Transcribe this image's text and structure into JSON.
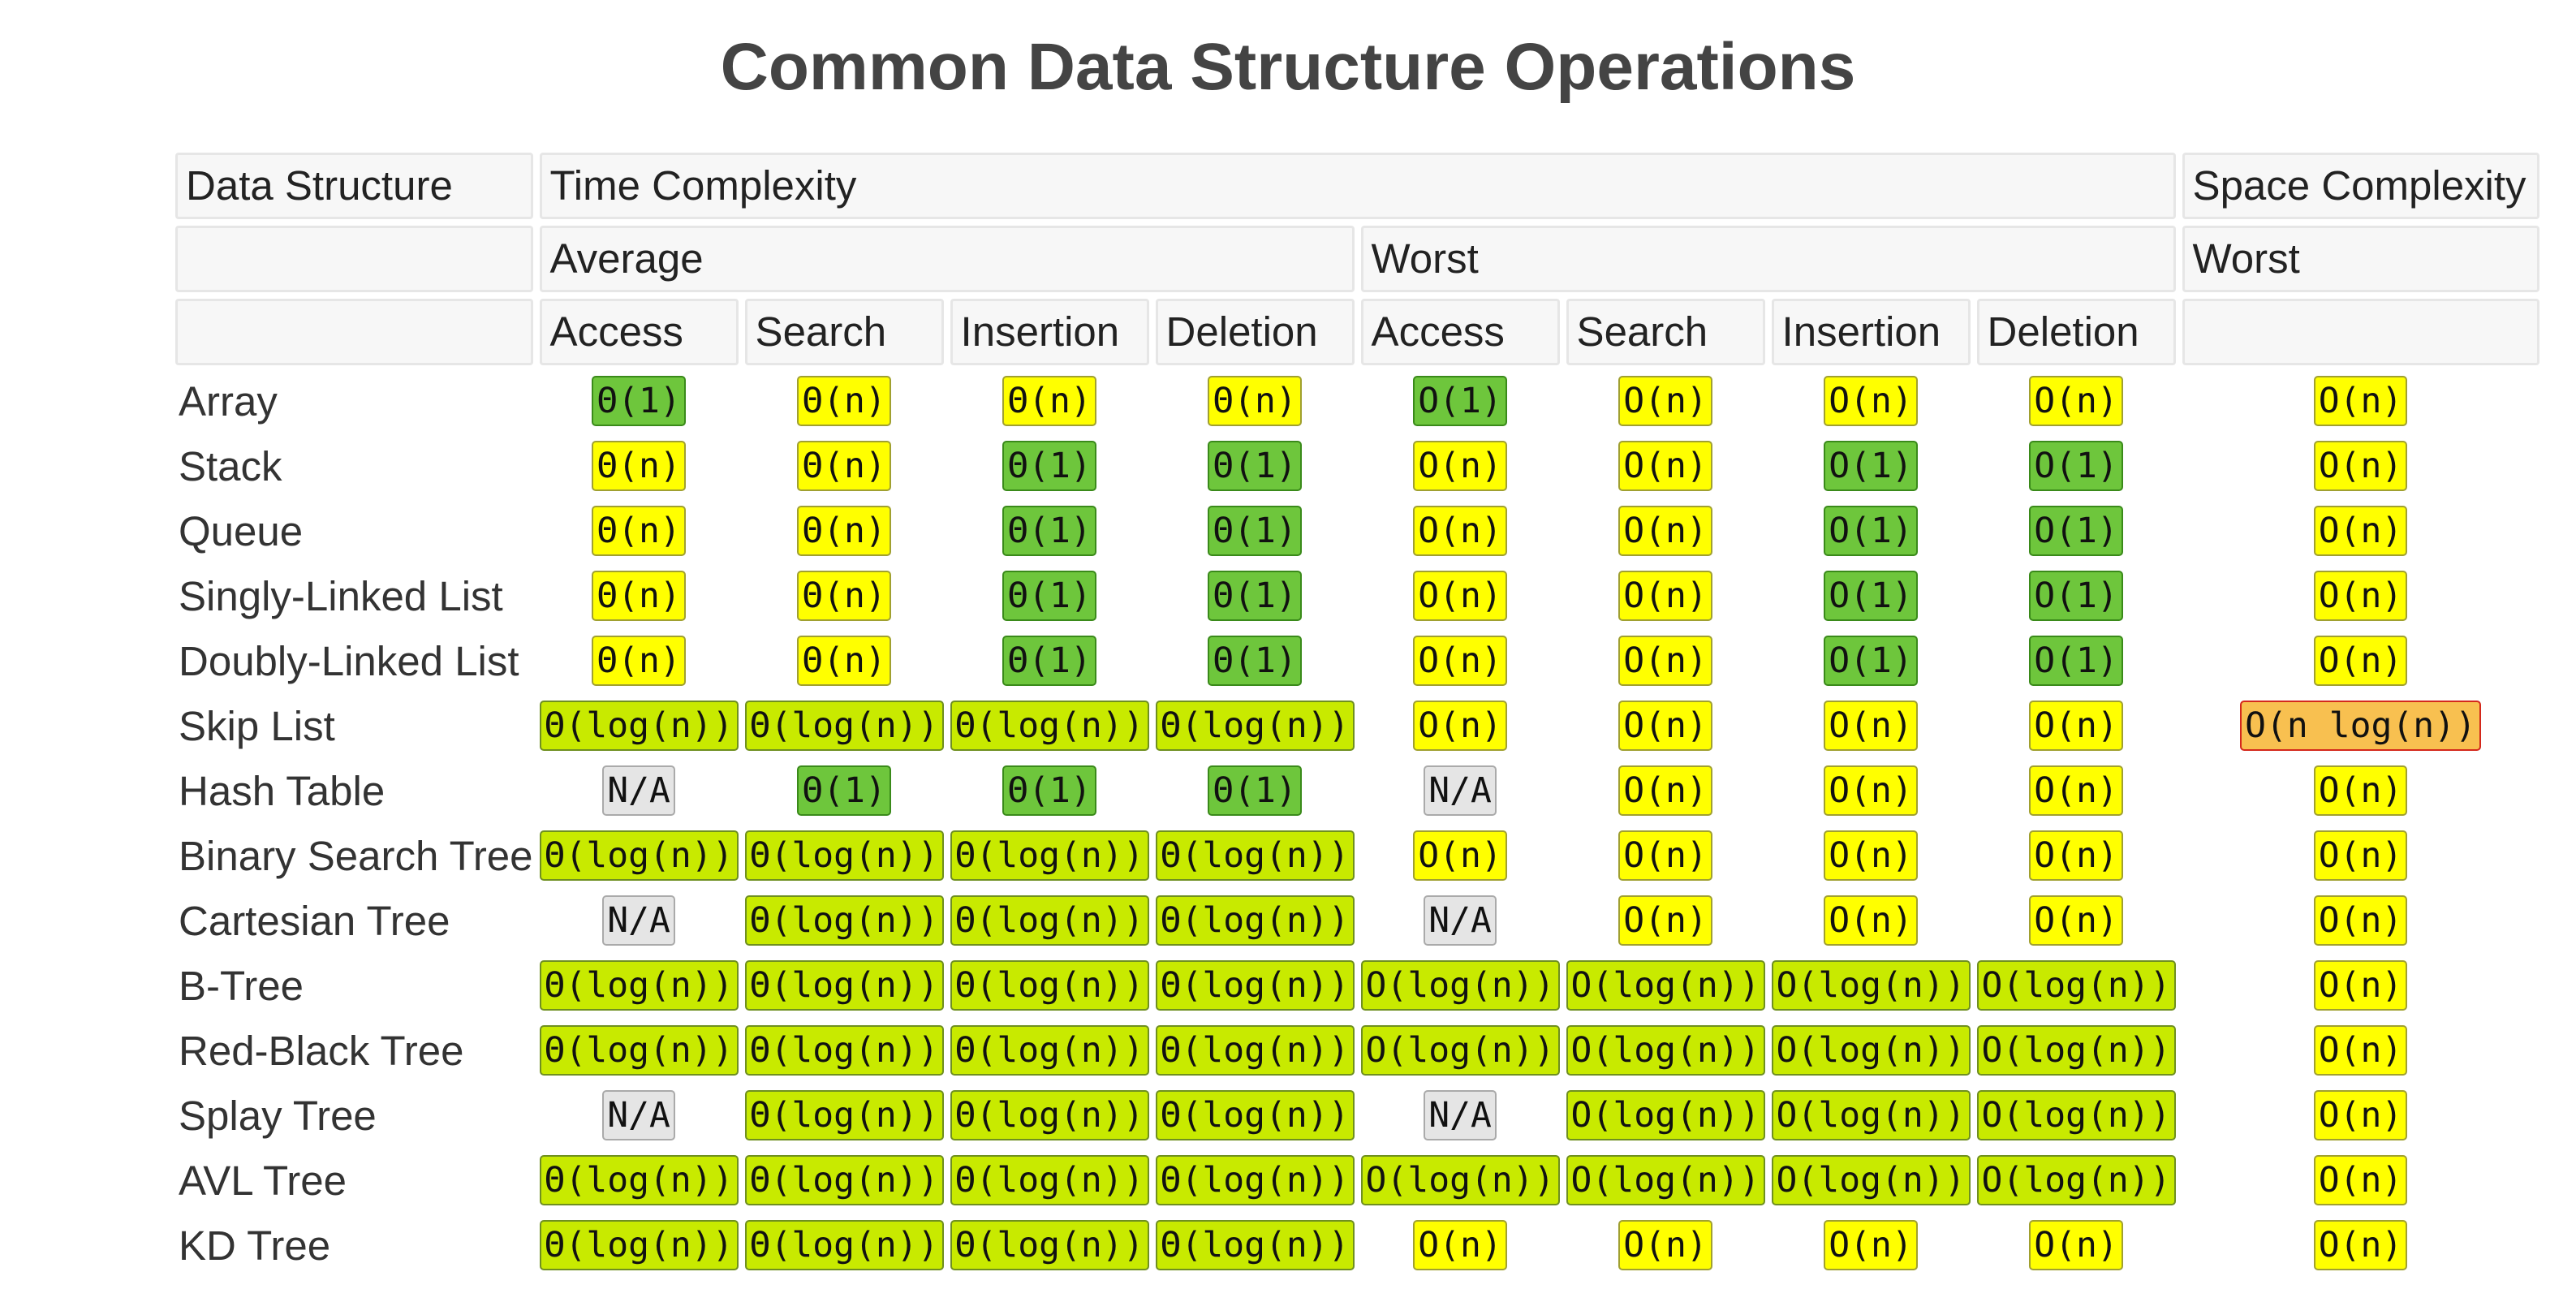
{
  "title": "Common Data Structure Operations",
  "colors": {
    "good": "#6ec63c",
    "fair": "#c8ea00",
    "ok": "#ffff00",
    "bad": "#f8c050",
    "na": "#e5e5e5"
  },
  "headers": {
    "data_structure": "Data Structure",
    "time_complexity": "Time Complexity",
    "space_complexity": "Space Complexity",
    "average": "Average",
    "worst": "Worst",
    "space_worst": "Worst",
    "columns": [
      "Access",
      "Search",
      "Insertion",
      "Deletion",
      "Access",
      "Search",
      "Insertion",
      "Deletion"
    ]
  },
  "rows": [
    {
      "name": "Array",
      "cells": [
        {
          "v": "Θ(1)",
          "c": "good"
        },
        {
          "v": "Θ(n)",
          "c": "ok"
        },
        {
          "v": "Θ(n)",
          "c": "ok"
        },
        {
          "v": "Θ(n)",
          "c": "ok"
        },
        {
          "v": "O(1)",
          "c": "good"
        },
        {
          "v": "O(n)",
          "c": "ok"
        },
        {
          "v": "O(n)",
          "c": "ok"
        },
        {
          "v": "O(n)",
          "c": "ok"
        },
        {
          "v": "O(n)",
          "c": "ok"
        }
      ]
    },
    {
      "name": "Stack",
      "cells": [
        {
          "v": "Θ(n)",
          "c": "ok"
        },
        {
          "v": "Θ(n)",
          "c": "ok"
        },
        {
          "v": "Θ(1)",
          "c": "good"
        },
        {
          "v": "Θ(1)",
          "c": "good"
        },
        {
          "v": "O(n)",
          "c": "ok"
        },
        {
          "v": "O(n)",
          "c": "ok"
        },
        {
          "v": "O(1)",
          "c": "good"
        },
        {
          "v": "O(1)",
          "c": "good"
        },
        {
          "v": "O(n)",
          "c": "ok"
        }
      ]
    },
    {
      "name": "Queue",
      "cells": [
        {
          "v": "Θ(n)",
          "c": "ok"
        },
        {
          "v": "Θ(n)",
          "c": "ok"
        },
        {
          "v": "Θ(1)",
          "c": "good"
        },
        {
          "v": "Θ(1)",
          "c": "good"
        },
        {
          "v": "O(n)",
          "c": "ok"
        },
        {
          "v": "O(n)",
          "c": "ok"
        },
        {
          "v": "O(1)",
          "c": "good"
        },
        {
          "v": "O(1)",
          "c": "good"
        },
        {
          "v": "O(n)",
          "c": "ok"
        }
      ]
    },
    {
      "name": "Singly-Linked List",
      "cells": [
        {
          "v": "Θ(n)",
          "c": "ok"
        },
        {
          "v": "Θ(n)",
          "c": "ok"
        },
        {
          "v": "Θ(1)",
          "c": "good"
        },
        {
          "v": "Θ(1)",
          "c": "good"
        },
        {
          "v": "O(n)",
          "c": "ok"
        },
        {
          "v": "O(n)",
          "c": "ok"
        },
        {
          "v": "O(1)",
          "c": "good"
        },
        {
          "v": "O(1)",
          "c": "good"
        },
        {
          "v": "O(n)",
          "c": "ok"
        }
      ]
    },
    {
      "name": "Doubly-Linked List",
      "cells": [
        {
          "v": "Θ(n)",
          "c": "ok"
        },
        {
          "v": "Θ(n)",
          "c": "ok"
        },
        {
          "v": "Θ(1)",
          "c": "good"
        },
        {
          "v": "Θ(1)",
          "c": "good"
        },
        {
          "v": "O(n)",
          "c": "ok"
        },
        {
          "v": "O(n)",
          "c": "ok"
        },
        {
          "v": "O(1)",
          "c": "good"
        },
        {
          "v": "O(1)",
          "c": "good"
        },
        {
          "v": "O(n)",
          "c": "ok"
        }
      ]
    },
    {
      "name": "Skip List",
      "cells": [
        {
          "v": "Θ(log(n))",
          "c": "fair"
        },
        {
          "v": "Θ(log(n))",
          "c": "fair"
        },
        {
          "v": "Θ(log(n))",
          "c": "fair"
        },
        {
          "v": "Θ(log(n))",
          "c": "fair"
        },
        {
          "v": "O(n)",
          "c": "ok"
        },
        {
          "v": "O(n)",
          "c": "ok"
        },
        {
          "v": "O(n)",
          "c": "ok"
        },
        {
          "v": "O(n)",
          "c": "ok"
        },
        {
          "v": "O(n log(n))",
          "c": "bad"
        }
      ]
    },
    {
      "name": "Hash Table",
      "cells": [
        {
          "v": "N/A",
          "c": "na"
        },
        {
          "v": "Θ(1)",
          "c": "good"
        },
        {
          "v": "Θ(1)",
          "c": "good"
        },
        {
          "v": "Θ(1)",
          "c": "good"
        },
        {
          "v": "N/A",
          "c": "na"
        },
        {
          "v": "O(n)",
          "c": "ok"
        },
        {
          "v": "O(n)",
          "c": "ok"
        },
        {
          "v": "O(n)",
          "c": "ok"
        },
        {
          "v": "O(n)",
          "c": "ok"
        }
      ]
    },
    {
      "name": "Binary Search Tree",
      "cells": [
        {
          "v": "Θ(log(n))",
          "c": "fair"
        },
        {
          "v": "Θ(log(n))",
          "c": "fair"
        },
        {
          "v": "Θ(log(n))",
          "c": "fair"
        },
        {
          "v": "Θ(log(n))",
          "c": "fair"
        },
        {
          "v": "O(n)",
          "c": "ok"
        },
        {
          "v": "O(n)",
          "c": "ok"
        },
        {
          "v": "O(n)",
          "c": "ok"
        },
        {
          "v": "O(n)",
          "c": "ok"
        },
        {
          "v": "O(n)",
          "c": "ok"
        }
      ]
    },
    {
      "name": "Cartesian Tree",
      "cells": [
        {
          "v": "N/A",
          "c": "na"
        },
        {
          "v": "Θ(log(n))",
          "c": "fair"
        },
        {
          "v": "Θ(log(n))",
          "c": "fair"
        },
        {
          "v": "Θ(log(n))",
          "c": "fair"
        },
        {
          "v": "N/A",
          "c": "na"
        },
        {
          "v": "O(n)",
          "c": "ok"
        },
        {
          "v": "O(n)",
          "c": "ok"
        },
        {
          "v": "O(n)",
          "c": "ok"
        },
        {
          "v": "O(n)",
          "c": "ok"
        }
      ]
    },
    {
      "name": "B-Tree",
      "cells": [
        {
          "v": "Θ(log(n))",
          "c": "fair"
        },
        {
          "v": "Θ(log(n))",
          "c": "fair"
        },
        {
          "v": "Θ(log(n))",
          "c": "fair"
        },
        {
          "v": "Θ(log(n))",
          "c": "fair"
        },
        {
          "v": "O(log(n))",
          "c": "fair"
        },
        {
          "v": "O(log(n))",
          "c": "fair"
        },
        {
          "v": "O(log(n))",
          "c": "fair"
        },
        {
          "v": "O(log(n))",
          "c": "fair"
        },
        {
          "v": "O(n)",
          "c": "ok"
        }
      ]
    },
    {
      "name": "Red-Black Tree",
      "cells": [
        {
          "v": "Θ(log(n))",
          "c": "fair"
        },
        {
          "v": "Θ(log(n))",
          "c": "fair"
        },
        {
          "v": "Θ(log(n))",
          "c": "fair"
        },
        {
          "v": "Θ(log(n))",
          "c": "fair"
        },
        {
          "v": "O(log(n))",
          "c": "fair"
        },
        {
          "v": "O(log(n))",
          "c": "fair"
        },
        {
          "v": "O(log(n))",
          "c": "fair"
        },
        {
          "v": "O(log(n))",
          "c": "fair"
        },
        {
          "v": "O(n)",
          "c": "ok"
        }
      ]
    },
    {
      "name": "Splay Tree",
      "cells": [
        {
          "v": "N/A",
          "c": "na"
        },
        {
          "v": "Θ(log(n))",
          "c": "fair"
        },
        {
          "v": "Θ(log(n))",
          "c": "fair"
        },
        {
          "v": "Θ(log(n))",
          "c": "fair"
        },
        {
          "v": "N/A",
          "c": "na"
        },
        {
          "v": "O(log(n))",
          "c": "fair"
        },
        {
          "v": "O(log(n))",
          "c": "fair"
        },
        {
          "v": "O(log(n))",
          "c": "fair"
        },
        {
          "v": "O(n)",
          "c": "ok"
        }
      ]
    },
    {
      "name": "AVL Tree",
      "cells": [
        {
          "v": "Θ(log(n))",
          "c": "fair"
        },
        {
          "v": "Θ(log(n))",
          "c": "fair"
        },
        {
          "v": "Θ(log(n))",
          "c": "fair"
        },
        {
          "v": "Θ(log(n))",
          "c": "fair"
        },
        {
          "v": "O(log(n))",
          "c": "fair"
        },
        {
          "v": "O(log(n))",
          "c": "fair"
        },
        {
          "v": "O(log(n))",
          "c": "fair"
        },
        {
          "v": "O(log(n))",
          "c": "fair"
        },
        {
          "v": "O(n)",
          "c": "ok"
        }
      ]
    },
    {
      "name": "KD Tree",
      "cells": [
        {
          "v": "Θ(log(n))",
          "c": "fair"
        },
        {
          "v": "Θ(log(n))",
          "c": "fair"
        },
        {
          "v": "Θ(log(n))",
          "c": "fair"
        },
        {
          "v": "Θ(log(n))",
          "c": "fair"
        },
        {
          "v": "O(n)",
          "c": "ok"
        },
        {
          "v": "O(n)",
          "c": "ok"
        },
        {
          "v": "O(n)",
          "c": "ok"
        },
        {
          "v": "O(n)",
          "c": "ok"
        },
        {
          "v": "O(n)",
          "c": "ok"
        }
      ]
    }
  ]
}
